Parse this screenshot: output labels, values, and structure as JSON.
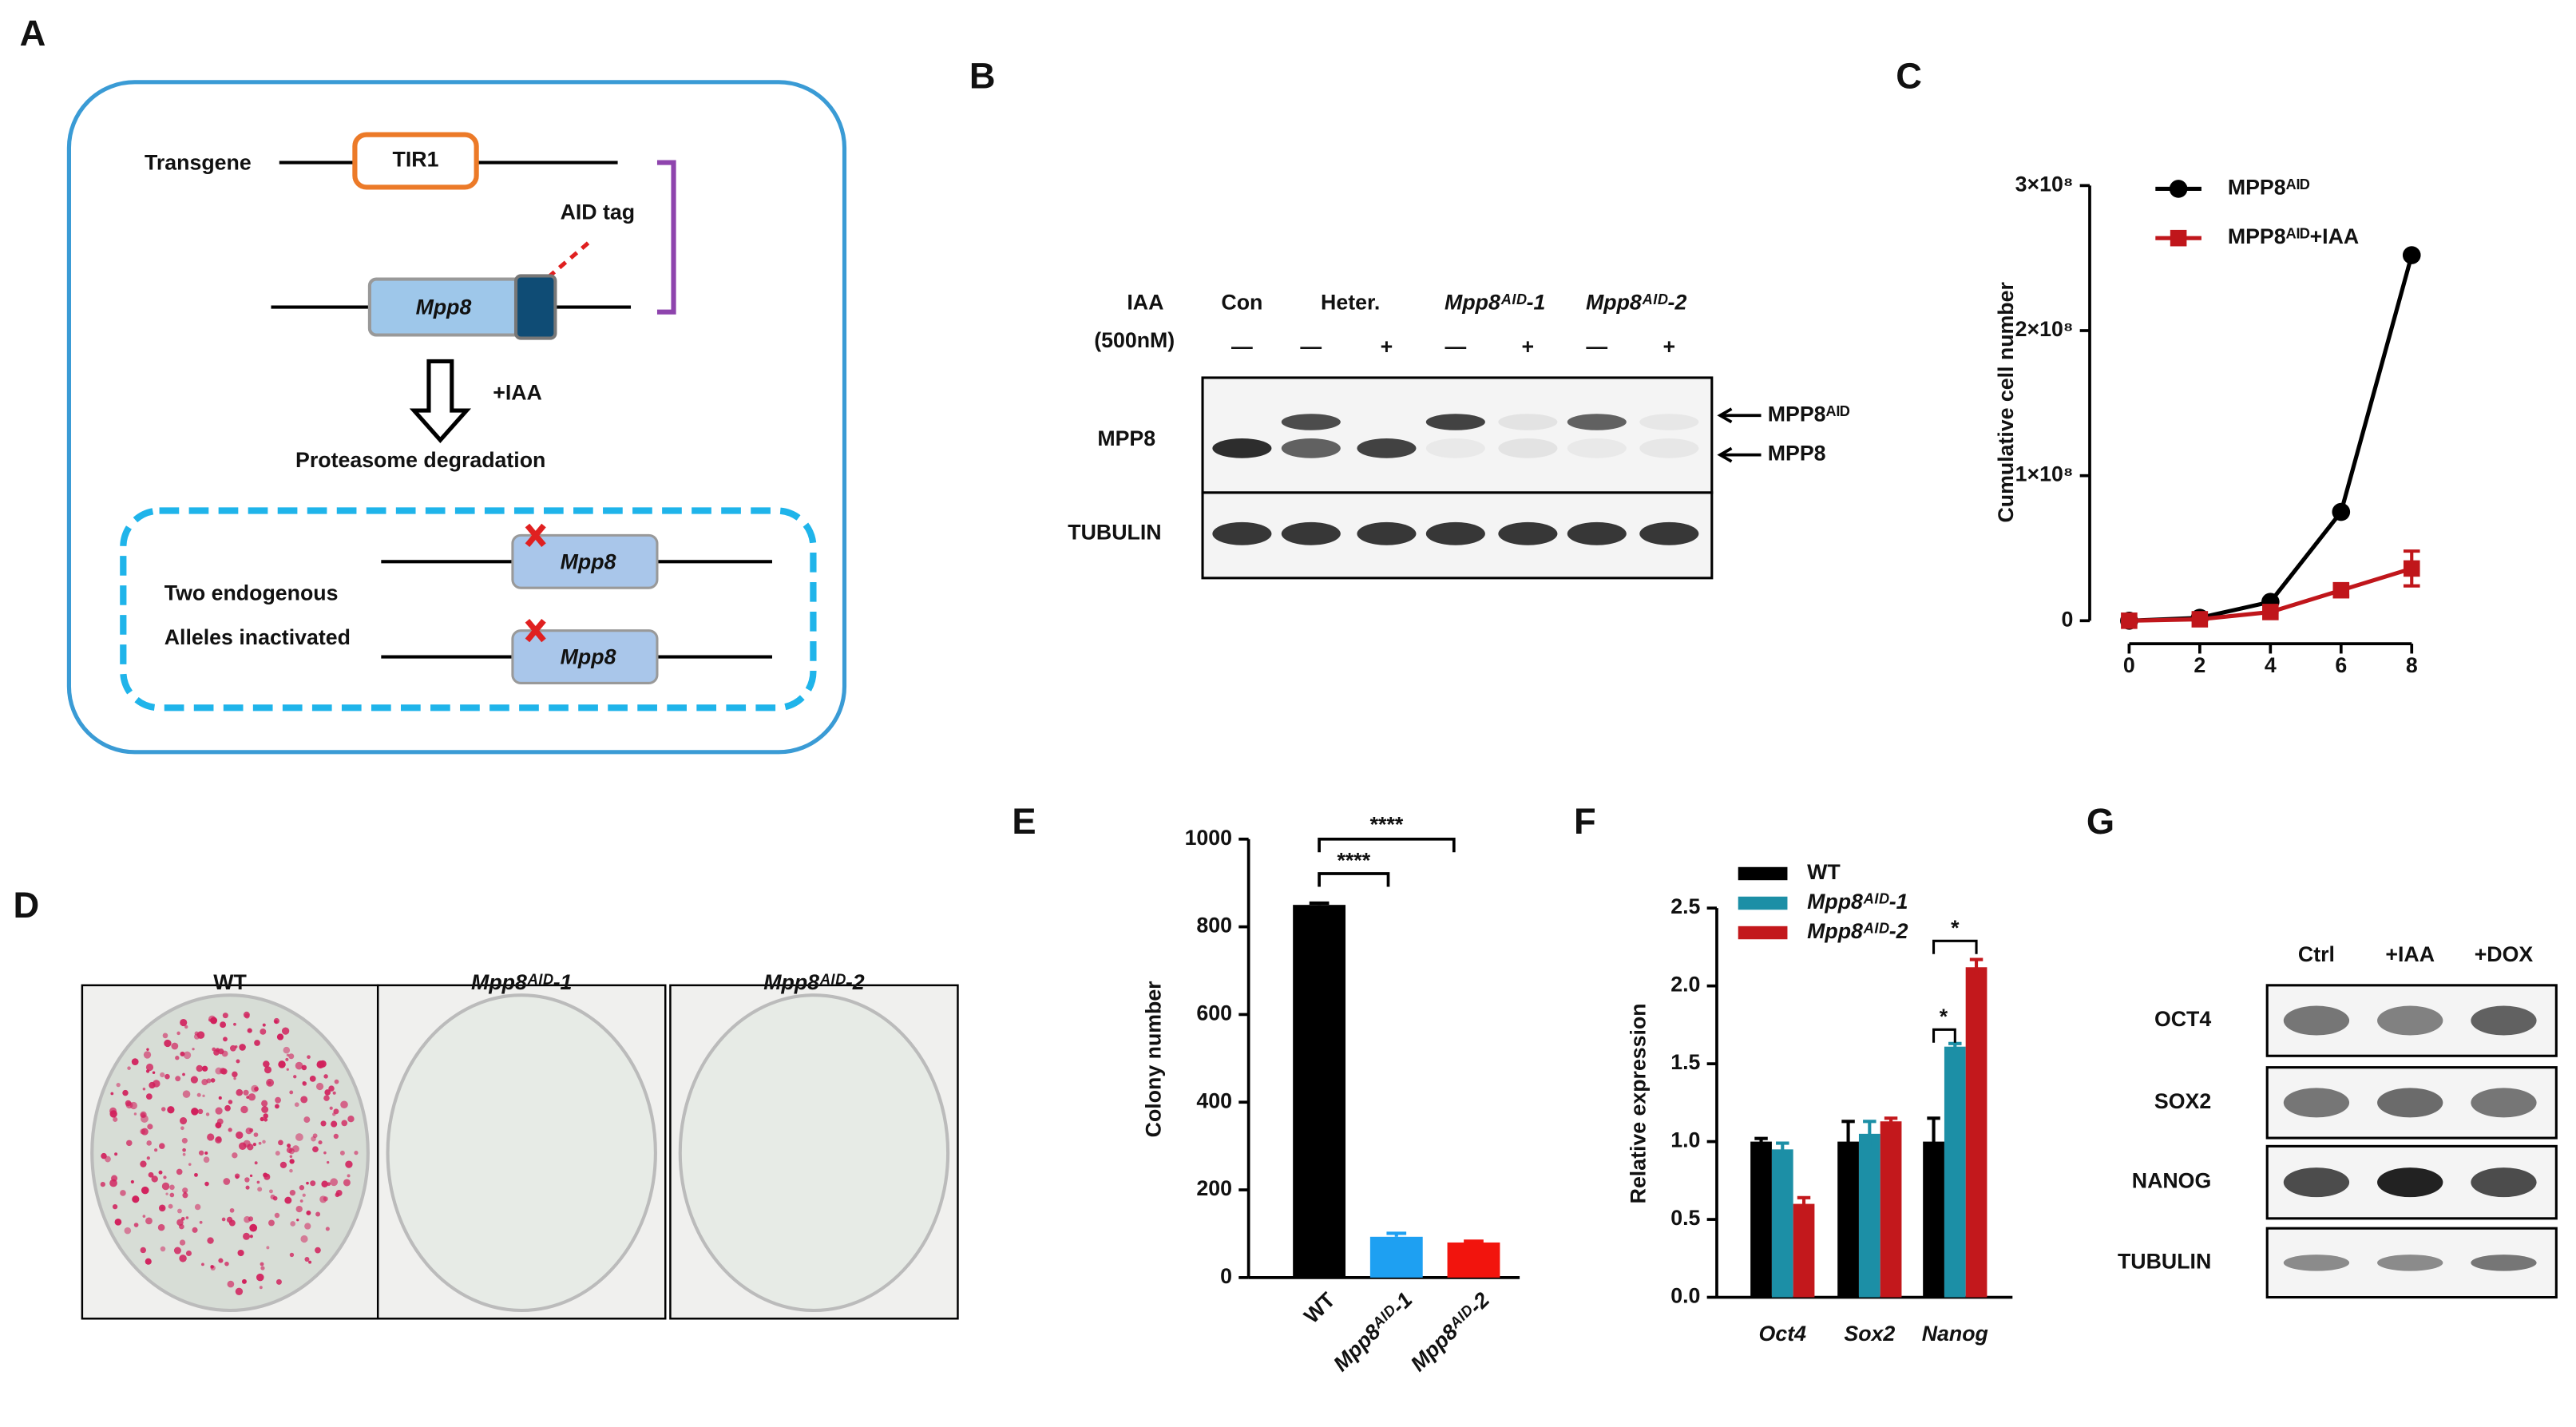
{
  "panel_labels": [
    "A",
    "B",
    "C",
    "D",
    "E",
    "F",
    "G"
  ],
  "panel_a": {
    "transgene": "Transgene",
    "tir1": "TIR1",
    "aid_tag": "AID tag",
    "mpp8": "Mpp8",
    "iaa": "+IAA",
    "degradation": "Proteasome degradation",
    "alleles_line1": "Two endogenous",
    "alleles_line2": "Alleles inactivated",
    "allele_genes": [
      "Mpp8",
      "Mpp8"
    ]
  },
  "panel_b": {
    "treatment": "IAA",
    "concentration": "(500nM)",
    "lanes": [
      "Con",
      "Heter.",
      "Mpp8ᴬᴵᴰ-1",
      "Mpp8ᴬᴵᴰ-2"
    ],
    "iaa_signs": [
      "—",
      "—",
      "+",
      "—",
      "+",
      "—",
      "+"
    ],
    "rows": [
      "MPP8",
      "TUBULIN"
    ],
    "bands": [
      "MPP8ᴬᴵᴰ",
      "MPP8"
    ]
  },
  "panel_d": {
    "titles": [
      "WT",
      "Mpp8ᴬᴵᴰ-1",
      "Mpp8ᴬᴵᴰ-2"
    ]
  },
  "panel_g": {
    "columns": [
      "Ctrl",
      "+IAA",
      "+DOX"
    ],
    "rows": [
      "OCT4",
      "SOX2",
      "NANOG",
      "TUBULIN"
    ]
  },
  "chart_data": [
    {
      "type": "line",
      "ylabel": "Cumulative cell number",
      "x": [
        0,
        2,
        4,
        6,
        8
      ],
      "xlim": [
        0,
        8
      ],
      "xticks": [
        0,
        2,
        4,
        6,
        8
      ],
      "ylim": [
        0,
        300000000
      ],
      "yticks": [
        0,
        {
          "value": 100000000,
          "label": "1×10⁸"
        },
        {
          "value": 200000000,
          "label": "2×10⁸"
        },
        {
          "value": 300000000,
          "label": "3×10⁸"
        }
      ],
      "series": [
        {
          "name": "MPP8ᴬᴵᴰ",
          "color": "#000000",
          "marker": "circle",
          "values": [
            0,
            2000000,
            13000000,
            75000000,
            252000000
          ]
        },
        {
          "name": "MPP8ᴬᴵᴰ+IAA",
          "color": "#c0161b",
          "marker": "square",
          "values": [
            0,
            1000000,
            6000000,
            21000000,
            36000000
          ],
          "errors": [
            0,
            0,
            0,
            4000000,
            12000000
          ]
        }
      ]
    },
    {
      "type": "bar",
      "ylabel": "Colony number",
      "categories": [
        "WT",
        "Mpp8ᴬᴵᴰ-1",
        "Mpp8ᴬᴵᴰ-2"
      ],
      "values": [
        850,
        93,
        80
      ],
      "errors": [
        4,
        8,
        3
      ],
      "colors": [
        "#000000",
        "#1ea0f2",
        "#f2140d"
      ],
      "ylim": [
        0,
        1000
      ],
      "yticks": [
        0,
        200,
        400,
        600,
        800,
        1000
      ],
      "annotations": [
        "****",
        "****"
      ]
    },
    {
      "type": "grouped-bar",
      "ylabel": "Relative expression",
      "categories": [
        "Oct4",
        "Sox2",
        "Nanog"
      ],
      "ylim": [
        0,
        2.5
      ],
      "yticks": [
        {
          "value": 0,
          "label": "0.0"
        },
        0.5,
        {
          "value": 1,
          "label": "1.0"
        },
        1.5,
        {
          "value": 2,
          "label": "2.0"
        },
        2.5
      ],
      "series": [
        {
          "name": "WT",
          "color": "#000000",
          "values": [
            1.0,
            1.0,
            1.0
          ],
          "errors": [
            0.02,
            0.13,
            0.15
          ]
        },
        {
          "name": "Mpp8ᴬᴵᴰ-1",
          "color": "#1c8fa6",
          "values": [
            0.95,
            1.05,
            1.61
          ],
          "errors": [
            0.04,
            0.08,
            0.02
          ]
        },
        {
          "name": "Mpp8ᴬᴵᴰ-2",
          "color": "#c3181c",
          "values": [
            0.6,
            1.13,
            2.12
          ],
          "errors": [
            0.04,
            0.02,
            0.05
          ]
        }
      ],
      "annotations": [
        "*",
        "*"
      ]
    }
  ]
}
